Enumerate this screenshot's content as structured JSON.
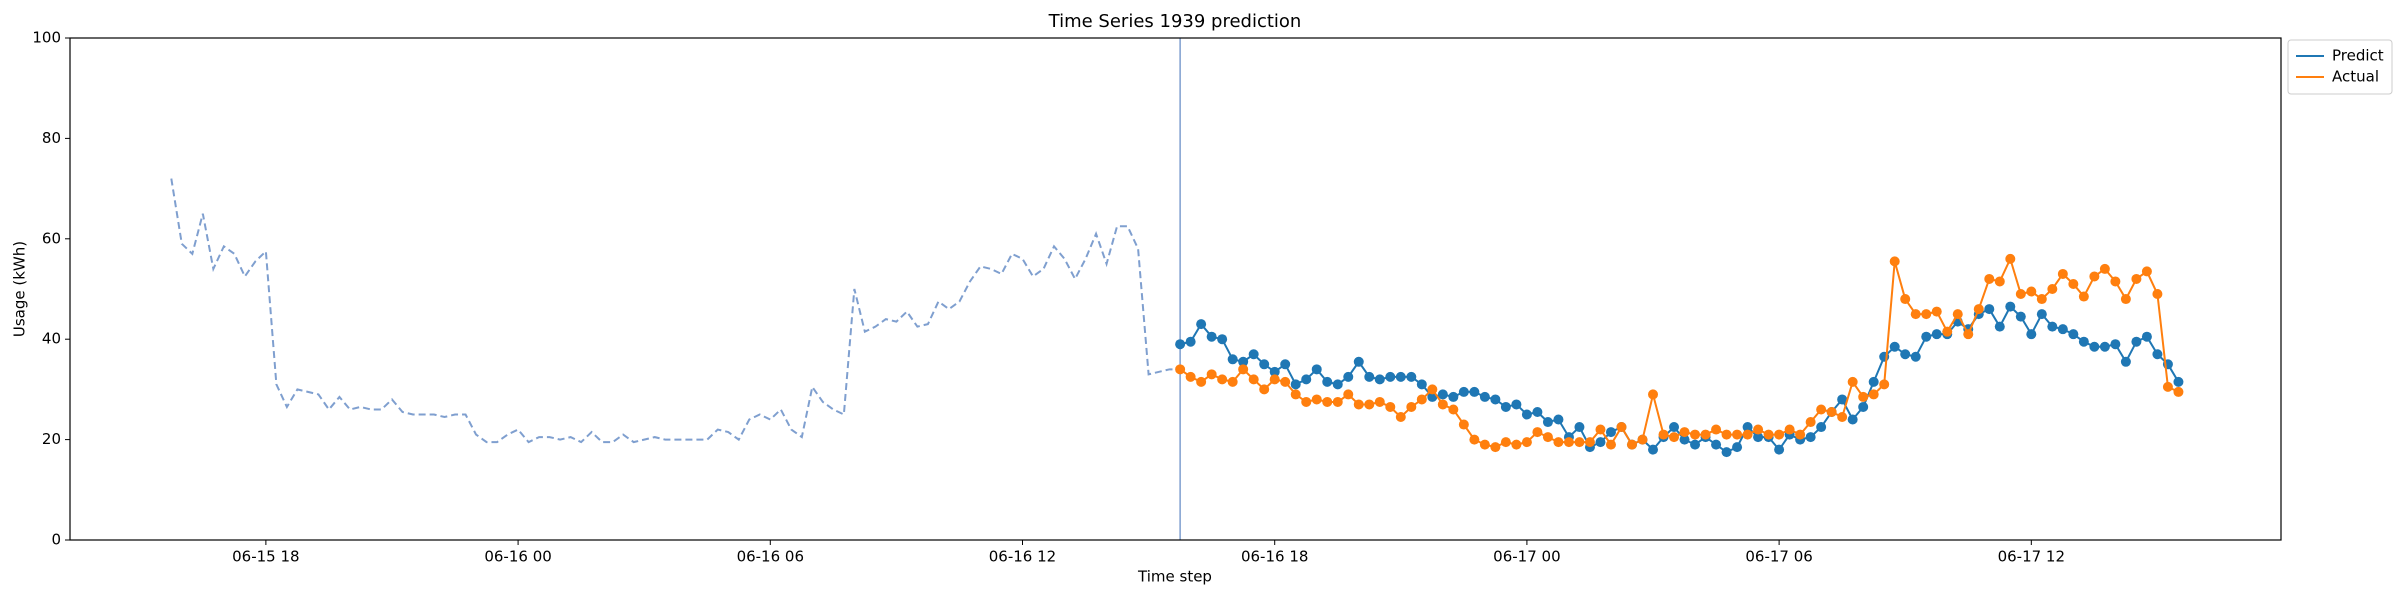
{
  "chart_data": {
    "type": "line",
    "title": "Time Series 1939 prediction",
    "x_label": "Time step",
    "y_label": "Usage (kWh)",
    "xlim": [
      13.34,
      65.94
    ],
    "ylim": [
      0,
      100
    ],
    "xticks": [
      {
        "value": 18,
        "label": "06-15 18"
      },
      {
        "value": 24,
        "label": "06-16 00"
      },
      {
        "value": 30,
        "label": "06-16 06"
      },
      {
        "value": 36,
        "label": "06-16 12"
      },
      {
        "value": 42,
        "label": "06-16 18"
      },
      {
        "value": 48,
        "label": "06-17 00"
      },
      {
        "value": 54,
        "label": "06-17 06"
      },
      {
        "value": 60,
        "label": "06-17 12"
      }
    ],
    "yticks": [
      0,
      20,
      40,
      60,
      80,
      100
    ],
    "vline": 39.75,
    "vline_color": "#7f9fcf",
    "legend": "upper right outside",
    "grid": false,
    "series": [
      {
        "color": "#7f9fcf",
        "dashed": true,
        "marker": false,
        "x": [
          15.75,
          16,
          16.25,
          16.5,
          16.75,
          17,
          17.25,
          17.5,
          17.75,
          18,
          18.25,
          18.5,
          18.75,
          19,
          19.25,
          19.5,
          19.75,
          20,
          20.25,
          20.5,
          20.75,
          21,
          21.25,
          21.5,
          21.75,
          22,
          22.25,
          22.5,
          22.75,
          23,
          23.25,
          23.5,
          23.75,
          24,
          24.25,
          24.5,
          24.75,
          25,
          25.25,
          25.5,
          25.75,
          26,
          26.25,
          26.5,
          26.75,
          27,
          27.25,
          27.5,
          27.75,
          28,
          28.25,
          28.5,
          28.75,
          29,
          29.25,
          29.5,
          29.75,
          30,
          30.25,
          30.5,
          30.75,
          31,
          31.25,
          31.5,
          31.75,
          32,
          32.25,
          32.5,
          32.75,
          33,
          33.25,
          33.5,
          33.75,
          34,
          34.25,
          34.5,
          34.75,
          35,
          35.25,
          35.5,
          35.75,
          36,
          36.25,
          36.5,
          36.75,
          37,
          37.25,
          37.5,
          37.75,
          38,
          38.25,
          38.5,
          38.75,
          39,
          39.25,
          39.5,
          39.75
        ],
        "values": [
          72,
          59,
          57,
          65,
          54,
          58.5,
          57,
          52.5,
          55.5,
          57.5,
          31,
          26.5,
          30,
          29.5,
          29,
          26,
          28.5,
          26,
          26.5,
          26,
          26,
          28,
          25.5,
          25,
          25,
          25,
          24.5,
          25,
          25,
          21,
          19.5,
          19.5,
          21,
          22,
          19.5,
          20.5,
          20.5,
          20,
          20.5,
          19.5,
          21.5,
          19.5,
          19.5,
          21,
          19.5,
          20,
          20.5,
          20,
          20,
          20,
          20,
          20,
          22,
          21.5,
          20,
          24,
          25,
          24,
          26,
          22,
          20.5,
          30.5,
          27.5,
          26,
          25,
          50,
          41.5,
          42.5,
          44,
          43.5,
          45.5,
          42.5,
          43,
          47.5,
          46,
          47.5,
          51.5,
          54.5,
          54,
          53,
          57,
          56,
          52.5,
          54,
          58.5,
          56,
          52,
          56,
          61,
          55,
          62.5,
          62.5,
          58,
          33,
          33.5,
          34,
          34
        ]
      },
      {
        "name": "Predict",
        "color": "#1f77b4",
        "dashed": false,
        "marker": true,
        "x": [
          39.75,
          40,
          40.25,
          40.5,
          40.75,
          41,
          41.25,
          41.5,
          41.75,
          42,
          42.25,
          42.5,
          42.75,
          43,
          43.25,
          43.5,
          43.75,
          44,
          44.25,
          44.5,
          44.75,
          45,
          45.25,
          45.5,
          45.75,
          46,
          46.25,
          46.5,
          46.75,
          47,
          47.25,
          47.5,
          47.75,
          48,
          48.25,
          48.5,
          48.75,
          49,
          49.25,
          49.5,
          49.75,
          50,
          50.25,
          50.5,
          50.75,
          51,
          51.25,
          51.5,
          51.75,
          52,
          52.25,
          52.5,
          52.75,
          53,
          53.25,
          53.5,
          53.75,
          54,
          54.25,
          54.5,
          54.75,
          55,
          55.25,
          55.5,
          55.75,
          56,
          56.25,
          56.5,
          56.75,
          57,
          57.25,
          57.5,
          57.75,
          58,
          58.25,
          58.5,
          58.75,
          59,
          59.25,
          59.5,
          59.75,
          60,
          60.25,
          60.5,
          60.75,
          61,
          61.25,
          61.5,
          61.75,
          62,
          62.25,
          62.5,
          62.75,
          63,
          63.25,
          63.5
        ],
        "values": [
          39,
          39.5,
          43,
          40.5,
          40,
          36,
          35.5,
          37,
          35,
          33.5,
          35,
          31,
          32,
          34,
          31.5,
          31,
          32.5,
          35.5,
          32.5,
          32,
          32.5,
          32.5,
          32.5,
          31,
          28.5,
          29,
          28.5,
          29.5,
          29.5,
          28.5,
          28,
          26.5,
          27,
          25,
          25.5,
          23.5,
          24,
          20.5,
          22.5,
          18.5,
          19.5,
          21.5,
          22.5,
          19,
          20,
          18,
          20.5,
          22.5,
          20,
          19,
          20.5,
          19,
          17.5,
          18.5,
          22.5,
          20.5,
          20.5,
          18,
          21,
          20,
          20.5,
          22.5,
          25.5,
          28,
          24,
          26.5,
          31.5,
          36.5,
          38.5,
          37,
          36.5,
          40.5,
          41,
          41,
          43.5,
          42,
          45,
          46,
          42.5,
          46.5,
          44.5,
          41,
          45,
          42.5,
          42,
          41,
          39.5,
          38.5,
          38.5,
          39,
          35.5,
          39.5,
          40.5,
          37,
          35,
          31.5
        ]
      },
      {
        "name": "Actual",
        "color": "#ff7f0e",
        "dashed": false,
        "marker": true,
        "x": [
          39.75,
          40,
          40.25,
          40.5,
          40.75,
          41,
          41.25,
          41.5,
          41.75,
          42,
          42.25,
          42.5,
          42.75,
          43,
          43.25,
          43.5,
          43.75,
          44,
          44.25,
          44.5,
          44.75,
          45,
          45.25,
          45.5,
          45.75,
          46,
          46.25,
          46.5,
          46.75,
          47,
          47.25,
          47.5,
          47.75,
          48,
          48.25,
          48.5,
          48.75,
          49,
          49.25,
          49.5,
          49.75,
          50,
          50.25,
          50.5,
          50.75,
          51,
          51.25,
          51.5,
          51.75,
          52,
          52.25,
          52.5,
          52.75,
          53,
          53.25,
          53.5,
          53.75,
          54,
          54.25,
          54.5,
          54.75,
          55,
          55.25,
          55.5,
          55.75,
          56,
          56.25,
          56.5,
          56.75,
          57,
          57.25,
          57.5,
          57.75,
          58,
          58.25,
          58.5,
          58.75,
          59,
          59.25,
          59.5,
          59.75,
          60,
          60.25,
          60.5,
          60.75,
          61,
          61.25,
          61.5,
          61.75,
          62,
          62.25,
          62.5,
          62.75,
          63,
          63.25,
          63.5
        ],
        "values": [
          34,
          32.5,
          31.5,
          33,
          32,
          31.5,
          34,
          32,
          30,
          32,
          31.5,
          29,
          27.5,
          28,
          27.5,
          27.5,
          29,
          27,
          27,
          27.5,
          26.5,
          24.5,
          26.5,
          28,
          30,
          27,
          26,
          23,
          20,
          19,
          18.5,
          19.5,
          19,
          19.5,
          21.5,
          20.5,
          19.5,
          19.5,
          19.5,
          19.5,
          22,
          19,
          22.5,
          19,
          20,
          29,
          21,
          20.5,
          21.5,
          21,
          21,
          22,
          21,
          21,
          21,
          22,
          21,
          21,
          22,
          21,
          23.5,
          26,
          25.5,
          24.5,
          31.5,
          28.5,
          29,
          31,
          55.5,
          48,
          45,
          45,
          45.5,
          41.5,
          45,
          41,
          46,
          52,
          51.5,
          56,
          49,
          49.5,
          48,
          50,
          53,
          51,
          48.5,
          52.5,
          54,
          51.5,
          48,
          52,
          53.5,
          49,
          30.5,
          29.5
        ]
      }
    ]
  }
}
